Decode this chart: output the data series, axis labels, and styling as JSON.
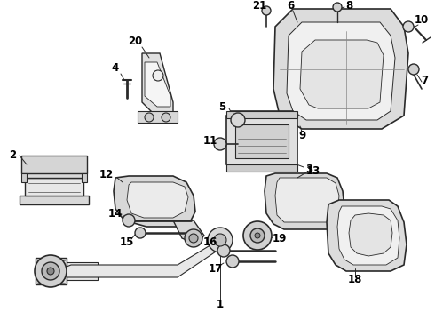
{
  "background_color": "#ffffff",
  "line_color": "#2a2a2a",
  "text_color": "#000000",
  "figsize": [
    4.9,
    3.6
  ],
  "dpi": 100,
  "label_fontsize": 8.5
}
